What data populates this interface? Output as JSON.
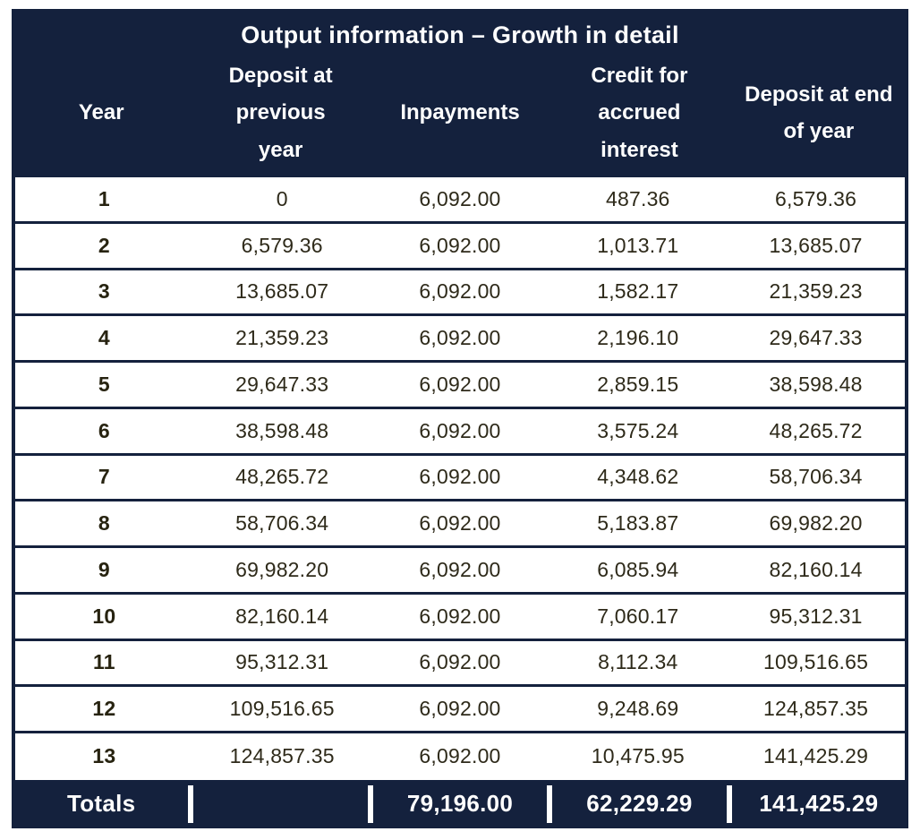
{
  "chart_data": {
    "type": "table",
    "title": "Output information – Growth in detail",
    "columns": [
      "Year",
      "Deposit at previous year",
      "Inpayments",
      "Credit for accrued interest",
      "Deposit at end of year"
    ],
    "rows": [
      {
        "year": "1",
        "prev": "0",
        "inpay": "6,092.00",
        "credit": "487.36",
        "end": "6,579.36"
      },
      {
        "year": "2",
        "prev": "6,579.36",
        "inpay": "6,092.00",
        "credit": "1,013.71",
        "end": "13,685.07"
      },
      {
        "year": "3",
        "prev": "13,685.07",
        "inpay": "6,092.00",
        "credit": "1,582.17",
        "end": "21,359.23"
      },
      {
        "year": "4",
        "prev": "21,359.23",
        "inpay": "6,092.00",
        "credit": "2,196.10",
        "end": "29,647.33"
      },
      {
        "year": "5",
        "prev": "29,647.33",
        "inpay": "6,092.00",
        "credit": "2,859.15",
        "end": "38,598.48"
      },
      {
        "year": "6",
        "prev": "38,598.48",
        "inpay": "6,092.00",
        "credit": "3,575.24",
        "end": "48,265.72"
      },
      {
        "year": "7",
        "prev": "48,265.72",
        "inpay": "6,092.00",
        "credit": "4,348.62",
        "end": "58,706.34"
      },
      {
        "year": "8",
        "prev": "58,706.34",
        "inpay": "6,092.00",
        "credit": "5,183.87",
        "end": "69,982.20"
      },
      {
        "year": "9",
        "prev": "69,982.20",
        "inpay": "6,092.00",
        "credit": "6,085.94",
        "end": "82,160.14"
      },
      {
        "year": "10",
        "prev": "82,160.14",
        "inpay": "6,092.00",
        "credit": "7,060.17",
        "end": "95,312.31"
      },
      {
        "year": "11",
        "prev": "95,312.31",
        "inpay": "6,092.00",
        "credit": "8,112.34",
        "end": "109,516.65"
      },
      {
        "year": "12",
        "prev": "109,516.65",
        "inpay": "6,092.00",
        "credit": "9,248.69",
        "end": "124,857.35"
      },
      {
        "year": "13",
        "prev": "124,857.35",
        "inpay": "6,092.00",
        "credit": "10,475.95",
        "end": "141,425.29"
      }
    ],
    "totals": {
      "label": "Totals",
      "prev": "",
      "inpay": "79,196.00",
      "credit": "62,229.29",
      "end": "141,425.29"
    }
  },
  "colors": {
    "header_navy": "#14213D",
    "header_text": "#FFFFFF",
    "body_text": "#2E2A1A",
    "row_separator": "#14213D",
    "totals_bg": "#14213D",
    "totals_text": "#FFFFFF",
    "background": "#FFFFFF"
  }
}
